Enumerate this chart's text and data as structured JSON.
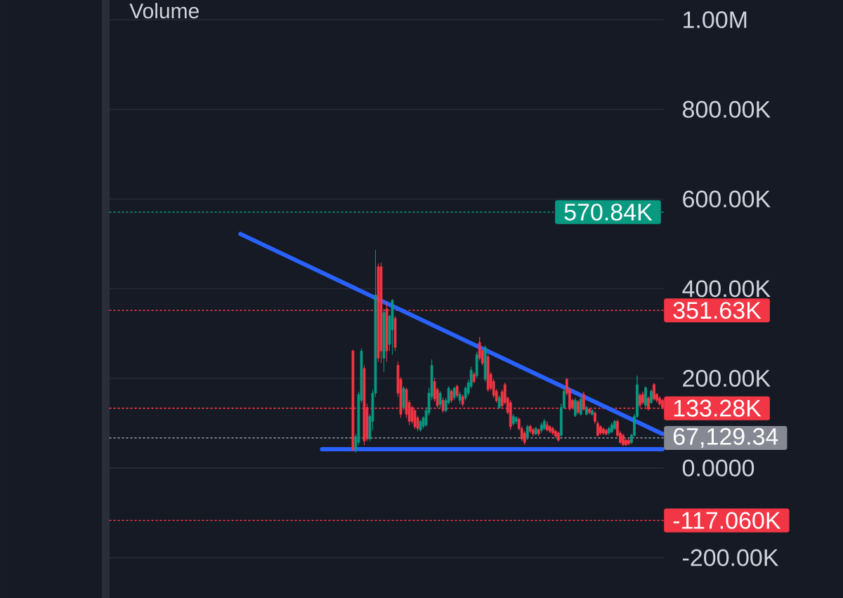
{
  "chart_data": {
    "type": "candlestick",
    "title": "Volume",
    "categories": [
      null,
      null,
      null,
      null,
      null,
      null,
      null,
      null,
      null,
      null,
      null,
      null,
      null,
      null,
      null,
      null,
      null,
      null,
      null,
      null,
      null,
      null,
      null,
      null,
      null,
      null,
      null,
      null,
      null,
      null,
      null,
      null,
      null,
      null,
      null,
      null,
      null,
      null,
      null,
      null,
      null,
      null,
      null,
      null,
      null,
      null,
      null,
      null,
      null,
      null,
      null,
      null,
      null,
      null,
      null,
      null,
      null,
      null,
      null,
      null,
      null,
      null,
      null,
      null,
      null,
      null,
      null,
      null,
      null,
      null,
      null,
      null,
      null,
      null,
      null,
      null,
      null,
      null,
      null,
      null,
      null,
      null,
      null,
      null,
      null,
      null,
      null,
      null,
      null,
      null,
      null,
      null,
      null,
      null,
      null,
      null,
      null,
      null,
      null,
      null,
      null,
      null,
      null,
      null,
      null,
      null,
      null,
      null,
      null,
      null,
      null,
      null,
      null,
      null,
      null,
      null,
      null,
      null,
      null,
      null,
      null,
      null,
      null,
      null,
      null,
      null,
      null,
      null,
      null,
      null,
      null,
      null,
      null,
      null,
      null,
      null,
      null,
      null,
      null,
      null,
      null,
      null,
      null,
      null,
      null,
      null,
      null,
      null,
      null,
      null,
      null,
      null,
      null,
      null,
      null,
      null,
      null,
      null,
      null,
      null,
      null,
      null,
      null,
      null,
      null,
      null,
      null,
      null,
      null,
      null,
      null,
      null,
      null,
      null,
      null,
      null,
      null,
      null,
      null,
      null,
      null,
      null,
      null,
      null,
      null,
      null,
      null,
      null,
      null,
      null,
      null,
      null,
      null,
      null,
      null,
      null,
      null
    ],
    "ohlc": [
      null,
      null,
      null,
      null,
      null,
      null,
      null,
      null,
      null,
      null,
      null,
      null,
      null,
      null,
      null,
      null,
      null,
      null,
      null,
      null,
      null,
      null,
      null,
      null,
      null,
      null,
      null,
      null,
      null,
      null,
      null,
      null,
      null,
      null,
      null,
      null,
      null,
      null,
      null,
      null,
      null,
      null,
      null,
      null,
      null,
      null,
      null,
      null,
      null,
      null,
      null,
      null,
      null,
      null,
      null,
      null,
      null,
      null,
      null,
      null,
      null,
      null,
      null,
      null,
      null,
      null,
      null,
      null,
      null,
      null,
      null,
      null,
      null,
      null,
      null,
      null,
      null,
      null,
      null,
      null,
      null,
      null,
      null,
      null,
      null,
      null,
      [
        261000,
        264000,
        37000,
        41000
      ],
      [
        41000,
        76000,
        34000,
        70000
      ],
      [
        57000,
        170000,
        51000,
        164000
      ],
      [
        151000,
        267000,
        145000,
        261000
      ],
      [
        222000,
        229000,
        51000,
        60000
      ],
      [
        135000,
        143000,
        60000,
        65000
      ],
      [
        65000,
        120000,
        60000,
        115000
      ],
      [
        104000,
        175000,
        85000,
        167000
      ],
      [
        167000,
        486000,
        159000,
        386000
      ],
      [
        449000,
        456000,
        237000,
        245000
      ],
      [
        449000,
        458000,
        234000,
        261000
      ],
      [
        245000,
        355000,
        214000,
        347000
      ],
      [
        355000,
        370000,
        237000,
        261000
      ],
      [
        276000,
        342000,
        261000,
        339000
      ],
      [
        308000,
        377000,
        253000,
        374000
      ],
      [
        334000,
        339000,
        261000,
        269000
      ],
      [
        229000,
        237000,
        159000,
        167000
      ],
      [
        198000,
        203000,
        112000,
        120000
      ],
      [
        135000,
        182000,
        128000,
        178000
      ],
      [
        175000,
        179000,
        112000,
        120000
      ],
      [
        146000,
        151000,
        96000,
        104000
      ],
      [
        135000,
        139000,
        99000,
        104000
      ],
      [
        128000,
        131000,
        87000,
        92000
      ],
      [
        112000,
        117000,
        82000,
        88000
      ],
      [
        85000,
        107000,
        81000,
        104000
      ],
      [
        93000,
        115000,
        88000,
        112000
      ],
      [
        96000,
        135000,
        92000,
        128000
      ],
      [
        123000,
        179000,
        117000,
        167000
      ],
      [
        159000,
        242000,
        151000,
        229000
      ],
      [
        193000,
        201000,
        148000,
        154000
      ],
      [
        175000,
        179000,
        135000,
        139000
      ],
      [
        142000,
        171000,
        135000,
        167000
      ],
      [
        151000,
        157000,
        123000,
        128000
      ],
      [
        128000,
        156000,
        124000,
        151000
      ],
      [
        146000,
        182000,
        142000,
        178000
      ],
      [
        171000,
        175000,
        146000,
        151000
      ],
      [
        157000,
        181000,
        151000,
        178000
      ],
      [
        182000,
        186000,
        157000,
        162000
      ],
      [
        151000,
        170000,
        143000,
        164000
      ],
      [
        159000,
        164000,
        137000,
        142000
      ],
      [
        156000,
        182000,
        151000,
        178000
      ],
      [
        167000,
        197000,
        162000,
        190000
      ],
      [
        182000,
        225000,
        178000,
        218000
      ],
      [
        209000,
        214000,
        189000,
        193000
      ],
      [
        206000,
        259000,
        201000,
        253000
      ],
      [
        280000,
        292000,
        240000,
        245000
      ],
      [
        261000,
        265000,
        229000,
        234000
      ],
      [
        198000,
        273000,
        193000,
        269000
      ],
      [
        248000,
        254000,
        170000,
        175000
      ],
      [
        209000,
        214000,
        173000,
        178000
      ],
      [
        193000,
        198000,
        157000,
        162000
      ],
      [
        171000,
        176000,
        146000,
        150000
      ],
      [
        135000,
        162000,
        132000,
        157000
      ],
      [
        170000,
        175000,
        135000,
        139000
      ],
      [
        186000,
        190000,
        142000,
        146000
      ],
      [
        156000,
        159000,
        120000,
        124000
      ],
      [
        146000,
        151000,
        85000,
        92000
      ],
      [
        99000,
        120000,
        95000,
        115000
      ],
      [
        104000,
        115000,
        98000,
        112000
      ],
      [
        109000,
        112000,
        84000,
        88000
      ],
      [
        88000,
        93000,
        60000,
        65000
      ],
      [
        78000,
        82000,
        52000,
        57000
      ],
      [
        68000,
        96000,
        63000,
        92000
      ],
      [
        93000,
        96000,
        78000,
        82000
      ],
      [
        85000,
        90000,
        71000,
        76000
      ],
      [
        76000,
        92000,
        73000,
        88000
      ],
      [
        85000,
        88000,
        71000,
        76000
      ],
      [
        84000,
        101000,
        79000,
        96000
      ],
      [
        88000,
        109000,
        85000,
        104000
      ],
      [
        96000,
        104000,
        82000,
        85000
      ],
      [
        92000,
        95000,
        78000,
        82000
      ],
      [
        88000,
        92000,
        74000,
        78000
      ],
      [
        82000,
        85000,
        68000,
        71000
      ],
      [
        78000,
        81000,
        59000,
        62000
      ],
      [
        73000,
        143000,
        70000,
        135000
      ],
      [
        135000,
        179000,
        132000,
        171000
      ],
      [
        198000,
        201000,
        162000,
        167000
      ],
      [
        175000,
        179000,
        128000,
        132000
      ],
      [
        151000,
        154000,
        131000,
        135000
      ],
      [
        117000,
        156000,
        114000,
        151000
      ],
      [
        148000,
        151000,
        120000,
        124000
      ],
      [
        120000,
        159000,
        117000,
        154000
      ],
      [
        164000,
        170000,
        128000,
        131000
      ],
      [
        120000,
        139000,
        117000,
        135000
      ],
      [
        131000,
        134000,
        120000,
        124000
      ],
      [
        120000,
        131000,
        117000,
        128000
      ],
      [
        123000,
        126000,
        99000,
        104000
      ],
      [
        99000,
        104000,
        70000,
        73000
      ],
      [
        92000,
        95000,
        74000,
        78000
      ],
      [
        87000,
        90000,
        74000,
        78000
      ],
      [
        84000,
        87000,
        73000,
        76000
      ],
      [
        78000,
        92000,
        74000,
        88000
      ],
      [
        81000,
        101000,
        78000,
        96000
      ],
      [
        88000,
        107000,
        85000,
        104000
      ],
      [
        104000,
        107000,
        70000,
        73000
      ],
      [
        78000,
        82000,
        54000,
        57000
      ],
      [
        73000,
        76000,
        49000,
        52000
      ],
      [
        62000,
        65000,
        49000,
        52000
      ],
      [
        62000,
        65000,
        51000,
        54000
      ],
      [
        57000,
        76000,
        54000,
        73000
      ],
      [
        73000,
        120000,
        70000,
        115000
      ],
      [
        115000,
        206000,
        112000,
        186000
      ],
      [
        162000,
        167000,
        135000,
        140000
      ],
      [
        164000,
        170000,
        142000,
        146000
      ],
      [
        140000,
        182000,
        135000,
        179000
      ],
      [
        156000,
        159000,
        128000,
        132000
      ],
      [
        146000,
        175000,
        143000,
        171000
      ],
      [
        186000,
        189000,
        151000,
        154000
      ],
      [
        164000,
        167000,
        146000,
        151000
      ],
      [
        156000,
        159000,
        139000,
        143000
      ],
      [
        151000,
        154000,
        132000,
        135000
      ]
    ],
    "colors": [
      null,
      null,
      null,
      null,
      null,
      null,
      null,
      null,
      null,
      null,
      null,
      null,
      null,
      null,
      null,
      null,
      null,
      null,
      null,
      null,
      null,
      null,
      null,
      null,
      null,
      null,
      null,
      null,
      null,
      null,
      null,
      null,
      null,
      null,
      null,
      null,
      null,
      null,
      null,
      null,
      null,
      null,
      null,
      null,
      null,
      null,
      null,
      null,
      null,
      null,
      null,
      null,
      null,
      null,
      null,
      null,
      null,
      null,
      null,
      null,
      null,
      null,
      null,
      null,
      null,
      null,
      null,
      null,
      null,
      null,
      null,
      null,
      null,
      null,
      null,
      null,
      null,
      null,
      null,
      null,
      null,
      null,
      null,
      null,
      null,
      null,
      "#f23645",
      "#089981",
      "#089981",
      "#089981",
      "#f23645",
      "#f23645",
      "#089981",
      "#089981",
      "#089981",
      "#f23645",
      "#f23645",
      "#089981",
      "#f23645",
      "#089981",
      "#089981",
      "#f23645",
      "#f23645",
      "#f23645",
      "#089981",
      "#f23645",
      "#f23645",
      "#f23645",
      "#f23645",
      "#f23645",
      "#089981",
      "#089981",
      "#089981",
      "#089981",
      "#089981",
      "#f23645",
      "#f23645",
      "#089981",
      "#f23645",
      "#089981",
      "#089981",
      "#f23645",
      "#089981",
      "#f23645",
      "#089981",
      "#f23645",
      "#089981",
      "#089981",
      "#089981",
      "#f23645",
      "#089981",
      "#f23645",
      "#f23645",
      "#089981",
      "#f23645",
      "#f23645",
      "#f23645",
      "#f23645",
      "#089981",
      "#f23645",
      "#f23645",
      "#f23645",
      "#f23645",
      "#089981",
      "#089981",
      "#f23645",
      "#f23645",
      "#f23645",
      "#089981",
      "#f23645",
      "#f23645",
      "#089981",
      "#f23645",
      "#089981",
      "#089981",
      "#f23645",
      "#f23645",
      "#f23645",
      "#f23645",
      "#f23645",
      "#089981",
      "#089981",
      "#f23645",
      "#f23645",
      "#f23645",
      "#089981",
      "#f23645",
      "#089981",
      "#f23645",
      "#089981",
      "#f23645",
      "#089981",
      "#f23645",
      "#f23645",
      "#f23645",
      "#f23645",
      "#f23645",
      "#089981",
      "#089981",
      "#089981",
      "#f23645",
      "#f23645",
      "#f23645",
      "#f23645",
      "#f23645",
      "#089981",
      "#089981",
      "#089981",
      "#f23645",
      "#f23645",
      "#089981",
      "#f23645",
      "#089981",
      "#f23645",
      "#f23645",
      "#f23645",
      "#f23645"
    ],
    "series": [
      {
        "type": "line",
        "color": "#2962ff",
        "values": [
          null,
          null,
          null,
          null,
          null,
          null,
          null,
          null,
          null,
          null,
          null,
          null,
          null,
          null,
          null,
          null,
          null,
          null,
          null,
          null,
          null,
          null,
          null,
          null,
          null,
          null,
          null,
          null,
          null,
          null,
          null,
          null,
          null,
          null,
          null,
          null,
          null,
          null,
          null,
          null,
          null,
          null,
          null,
          null,
          null,
          null,
          522000,
          null,
          null,
          null,
          null,
          null,
          null,
          null,
          null,
          null,
          null,
          null,
          null,
          null,
          null,
          null,
          null,
          null,
          null,
          null,
          null,
          null,
          null,
          null,
          null,
          null,
          null,
          null,
          null,
          null,
          null,
          null,
          null,
          null,
          null,
          null,
          null,
          null,
          null,
          null,
          null,
          null,
          null,
          null,
          null,
          null,
          null,
          null,
          null,
          null,
          null,
          null,
          null,
          null,
          null,
          null,
          null,
          null,
          null,
          null,
          null,
          null,
          null,
          null,
          null,
          null,
          null,
          null,
          null,
          null,
          null,
          null,
          null,
          null,
          null,
          null,
          null,
          null,
          null,
          null,
          null,
          null,
          null,
          null,
          null,
          null,
          null,
          null,
          null,
          null,
          null,
          null,
          null,
          null,
          null,
          null,
          null,
          null,
          null,
          null,
          null,
          null,
          null,
          null,
          null,
          null,
          null,
          null,
          null,
          null,
          null,
          null,
          null,
          null,
          null,
          null,
          null,
          null,
          null,
          null,
          null,
          null,
          null,
          null,
          null,
          null,
          null,
          null,
          null,
          null,
          null,
          null,
          null,
          null,
          null,
          null,
          null,
          null,
          null,
          null,
          null,
          null,
          null,
          null,
          null,
          null,
          null,
          null,
          null,
          null,
          76000
        ]
      },
      {
        "type": "line",
        "color": "#2962ff",
        "values": [
          null,
          null,
          null,
          null,
          null,
          null,
          null,
          null,
          null,
          null,
          null,
          null,
          null,
          null,
          null,
          null,
          null,
          null,
          null,
          null,
          null,
          null,
          null,
          null,
          null,
          null,
          null,
          null,
          null,
          null,
          null,
          null,
          null,
          null,
          null,
          null,
          null,
          null,
          null,
          null,
          null,
          null,
          null,
          null,
          null,
          null,
          null,
          null,
          null,
          null,
          null,
          null,
          null,
          null,
          null,
          null,
          null,
          null,
          null,
          null,
          null,
          null,
          null,
          null,
          null,
          null,
          null,
          null,
          null,
          null,
          null,
          null,
          null,
          null,
          null,
          42000,
          null,
          null,
          null,
          null,
          null,
          null,
          null,
          null,
          null,
          null,
          null,
          null,
          null,
          null,
          null,
          null,
          null,
          null,
          null,
          null,
          null,
          null,
          null,
          null,
          null,
          null,
          null,
          null,
          null,
          null,
          null,
          null,
          null,
          null,
          null,
          null,
          null,
          null,
          null,
          null,
          null,
          null,
          null,
          null,
          null,
          null,
          null,
          null,
          null,
          null,
          null,
          null,
          null,
          null,
          null,
          null,
          null,
          null,
          null,
          null,
          null,
          null,
          null,
          null,
          null,
          null,
          null,
          null,
          null,
          null,
          null,
          null,
          null,
          null,
          null,
          null,
          null,
          null,
          null,
          null,
          null,
          null,
          null,
          null,
          null,
          null,
          null,
          null,
          null,
          null,
          null,
          null,
          null,
          null,
          null,
          null,
          null,
          null,
          null,
          null,
          null,
          null,
          null,
          null,
          null,
          null,
          null,
          null,
          null,
          null,
          null,
          null,
          null,
          null,
          null,
          null,
          null,
          null,
          null,
          null,
          42000
        ]
      }
    ],
    "ylim": [
      -290000,
      1044000
    ],
    "yticks": [
      {
        "value": -200000,
        "label": "-200.00K"
      },
      {
        "value": 0,
        "label": "0.0000"
      },
      {
        "value": 200000,
        "label": "200.00K"
      },
      {
        "value": 400000,
        "label": "400.00K"
      },
      {
        "value": 600000,
        "label": "600.00K"
      },
      {
        "value": 800000,
        "label": "800.00K"
      },
      {
        "value": 1000000,
        "label": "1.00M"
      }
    ],
    "ref_lines": [
      {
        "axis": "y",
        "value": 570840,
        "label": "570.84K",
        "color": "#089981",
        "line_style": "dotted"
      },
      {
        "axis": "y",
        "value": 351630,
        "label": "351.63K",
        "color": "#f23645",
        "line_style": "dotted"
      },
      {
        "axis": "y",
        "value": 133280,
        "label": "133.28K",
        "color": "#f23645",
        "line_style": "dotted"
      },
      {
        "axis": "y",
        "value": 67129.34,
        "label": "67,129.34",
        "color": "#868993",
        "line_style": "dotted"
      },
      {
        "axis": "y",
        "value": -117060,
        "label": "-117.060K",
        "color": "#f23645",
        "line_style": "dotted"
      }
    ],
    "grid": "y",
    "tick_labels": "y"
  }
}
